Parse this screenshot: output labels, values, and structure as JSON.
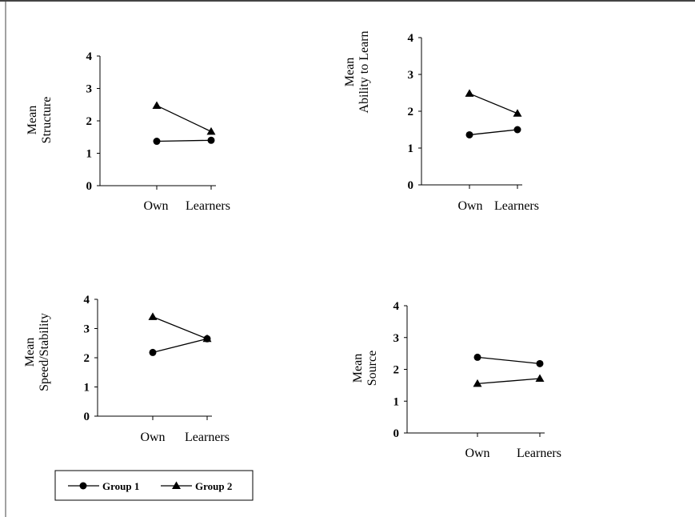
{
  "legend": {
    "group1": "Group 1",
    "group2": "Group 2"
  },
  "chart_data": [
    {
      "type": "line",
      "ylabel_lines": [
        "Mean",
        "Structure"
      ],
      "categories": [
        "Own",
        "Learners"
      ],
      "ylim": [
        0,
        4
      ],
      "yticks": [
        "0",
        "1",
        "2",
        "3",
        "4"
      ],
      "series": [
        {
          "name": "Group 1",
          "marker": "circle",
          "values": [
            1.37,
            1.4
          ]
        },
        {
          "name": "Group 2",
          "marker": "triangle",
          "values": [
            2.47,
            1.67
          ]
        }
      ]
    },
    {
      "type": "line",
      "ylabel_lines": [
        "Mean",
        "Ability to Learn"
      ],
      "categories": [
        "Own",
        "Learners"
      ],
      "ylim": [
        0,
        4
      ],
      "yticks": [
        "0",
        "1",
        "2",
        "3",
        "4"
      ],
      "series": [
        {
          "name": "Group 1",
          "marker": "circle",
          "values": [
            1.36,
            1.5
          ]
        },
        {
          "name": "Group 2",
          "marker": "triangle",
          "values": [
            2.48,
            1.94
          ]
        }
      ]
    },
    {
      "type": "line",
      "ylabel_lines": [
        "Mean",
        "Speed/Stability"
      ],
      "categories": [
        "Own",
        "Learners"
      ],
      "ylim": [
        0,
        4
      ],
      "yticks": [
        "0",
        "1",
        "2",
        "3",
        "4"
      ],
      "series": [
        {
          "name": "Group 1",
          "marker": "circle",
          "values": [
            2.18,
            2.65
          ]
        },
        {
          "name": "Group 2",
          "marker": "triangle",
          "values": [
            3.4,
            2.65
          ]
        }
      ]
    },
    {
      "type": "line",
      "ylabel_lines": [
        "Mean",
        "Source"
      ],
      "categories": [
        "Own",
        "Learners"
      ],
      "ylim": [
        0,
        4
      ],
      "yticks": [
        "0",
        "1",
        "2",
        "3",
        "4"
      ],
      "series": [
        {
          "name": "Group 1",
          "marker": "circle",
          "values": [
            2.38,
            2.18
          ]
        },
        {
          "name": "Group 2",
          "marker": "triangle",
          "values": [
            1.55,
            1.71
          ]
        }
      ]
    }
  ]
}
